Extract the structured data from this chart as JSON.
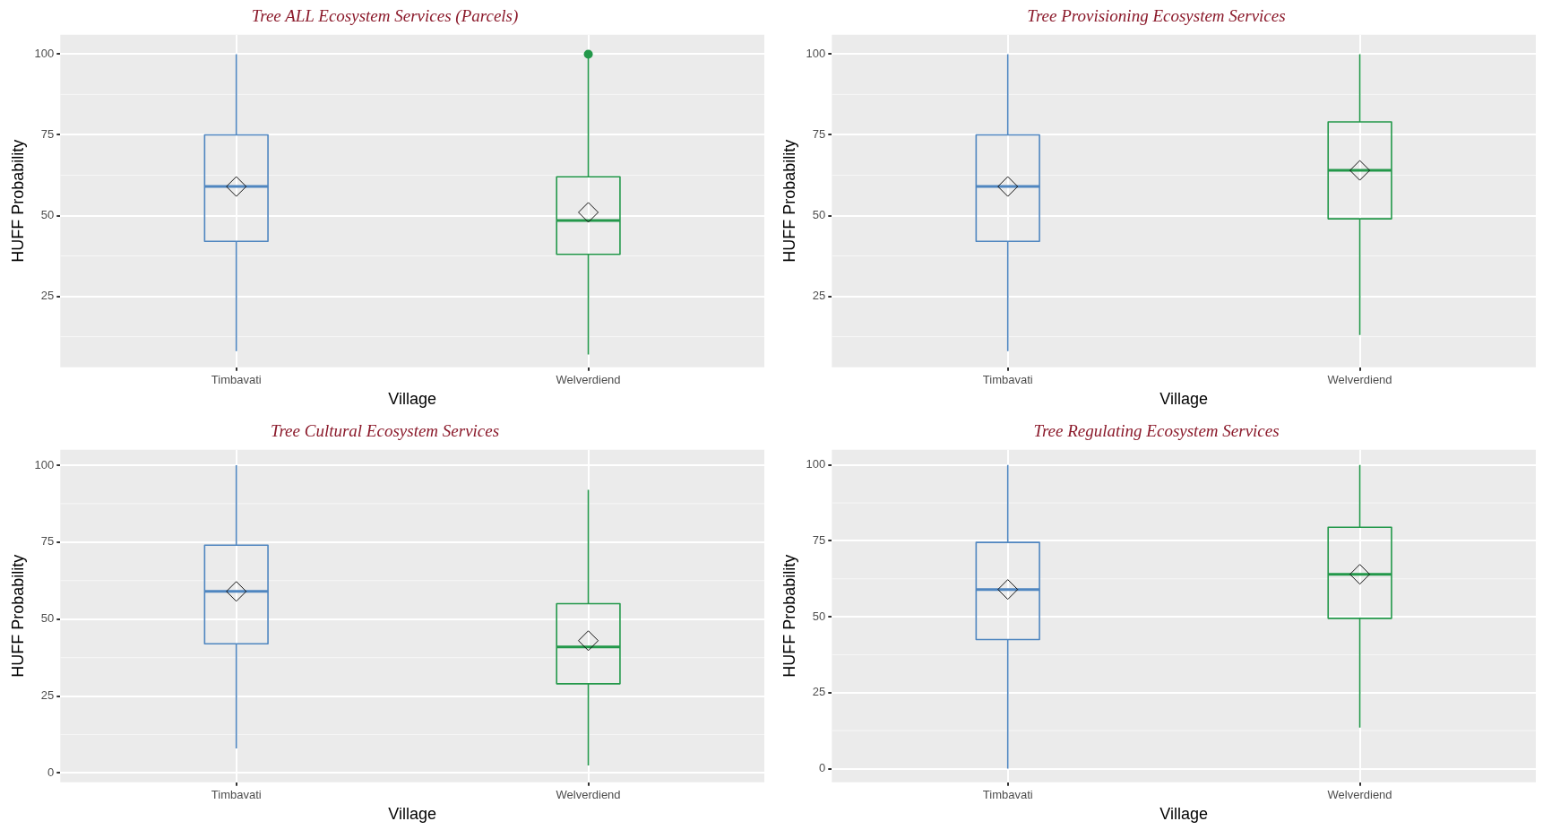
{
  "chart_data": [
    {
      "type": "box",
      "title": "Tree ALL Ecosystem Services (Parcels)",
      "xlabel": "Village",
      "ylabel": "HUFF Probability",
      "categories": [
        "Timbavati",
        "Welverdiend"
      ],
      "colors": [
        "#4f86c0",
        "#23984a"
      ],
      "ylim": [
        3,
        106
      ],
      "yticks": [
        25,
        50,
        75,
        100
      ],
      "grid": true,
      "boxes": [
        {
          "low": 8,
          "q1": 42,
          "median": 59,
          "q3": 75,
          "high": 100,
          "mean": 59
        },
        {
          "low": 7,
          "q1": 38,
          "median": 48.5,
          "q3": 62,
          "high": 100,
          "mean": 51,
          "outliers": [
            100
          ]
        }
      ]
    },
    {
      "type": "box",
      "title": "Tree Provisioning Ecosystem Services",
      "xlabel": "Village",
      "ylabel": "HUFF Probability",
      "categories": [
        "Timbavati",
        "Welverdiend"
      ],
      "colors": [
        "#4f86c0",
        "#23984a"
      ],
      "ylim": [
        3,
        106
      ],
      "yticks": [
        25,
        50,
        75,
        100
      ],
      "grid": true,
      "boxes": [
        {
          "low": 8,
          "q1": 42,
          "median": 59,
          "q3": 75,
          "high": 100,
          "mean": 59
        },
        {
          "low": 13,
          "q1": 49,
          "median": 64,
          "q3": 79,
          "high": 100,
          "mean": 64
        }
      ]
    },
    {
      "type": "box",
      "title": "Tree Cultural Ecosystem Services",
      "xlabel": "Village",
      "ylabel": "HUFF Probability",
      "categories": [
        "Timbavati",
        "Welverdiend"
      ],
      "colors": [
        "#4f86c0",
        "#23984a"
      ],
      "ylim": [
        -3,
        105
      ],
      "yticks": [
        0,
        25,
        50,
        75,
        100
      ],
      "grid": true,
      "boxes": [
        {
          "low": 8,
          "q1": 42,
          "median": 59,
          "q3": 74,
          "high": 100,
          "mean": 59
        },
        {
          "low": 2.5,
          "q1": 29,
          "median": 41,
          "q3": 55,
          "high": 92,
          "mean": 43
        }
      ]
    },
    {
      "type": "box",
      "title": "Tree Regulating Ecosystem Services",
      "xlabel": "Village",
      "ylabel": "HUFF Probability",
      "categories": [
        "Timbavati",
        "Welverdiend"
      ],
      "colors": [
        "#4f86c0",
        "#23984a"
      ],
      "ylim": [
        -4.5,
        105
      ],
      "yticks": [
        0,
        25,
        50,
        75,
        100
      ],
      "grid": true,
      "boxes": [
        {
          "low": 0,
          "q1": 42.5,
          "median": 59,
          "q3": 74.5,
          "high": 100,
          "mean": 59
        },
        {
          "low": 13.5,
          "q1": 49.5,
          "median": 64,
          "q3": 79.5,
          "high": 100,
          "mean": 64
        }
      ]
    }
  ]
}
